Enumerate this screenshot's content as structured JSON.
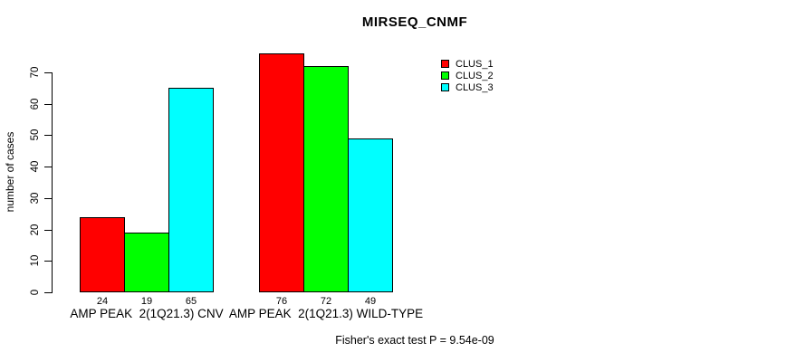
{
  "chart_data": {
    "type": "bar",
    "title": "MIRSEQ_CNMF",
    "ylabel": "number of cases",
    "xlabel": "",
    "footnote": "Fisher's exact test P = 9.54e-09",
    "categories": [
      "AMP PEAK  2(1Q21.3) CNV",
      "AMP PEAK  2(1Q21.3) WILD-TYPE"
    ],
    "series": [
      {
        "name": "CLUS_1",
        "color": "#ff0000",
        "values": [
          24,
          76
        ]
      },
      {
        "name": "CLUS_2",
        "color": "#00ff00",
        "values": [
          19,
          72
        ]
      },
      {
        "name": "CLUS_3",
        "color": "#00ffff",
        "values": [
          65,
          49
        ]
      }
    ],
    "bar_value_labels": [
      [
        24,
        19,
        65
      ],
      [
        76,
        72,
        49
      ]
    ],
    "ylim": [
      0,
      70
    ],
    "yticks": [
      0,
      10,
      20,
      30,
      40,
      50,
      60,
      70
    ],
    "grid": false,
    "bar_border_color": "#000000",
    "background_color": "#ffffff",
    "legend": {
      "position": "top-right",
      "entries": [
        "CLUS_1",
        "CLUS_2",
        "CLUS_3"
      ]
    }
  }
}
